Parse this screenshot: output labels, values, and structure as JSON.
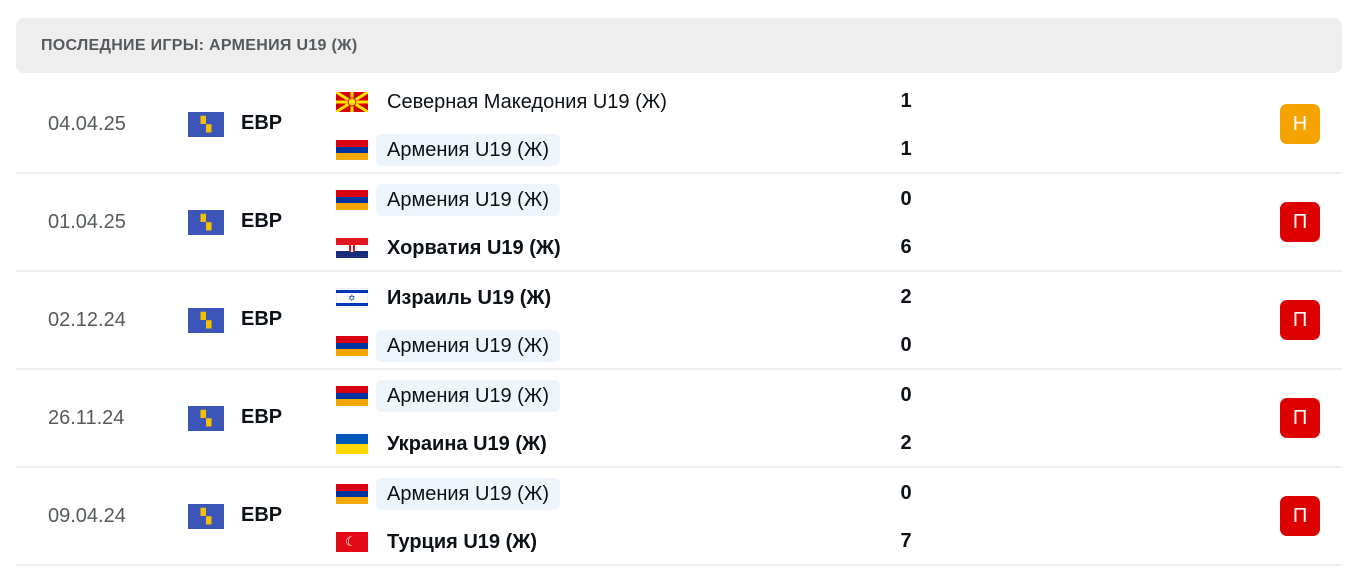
{
  "header": {
    "title": "ПОСЛЕДНИЕ ИГРЫ: АРМЕНИЯ U19 (Ж)"
  },
  "colors": {
    "draw": "#f5a300",
    "loss": "#dc0000",
    "highlight": "#eef5fd"
  },
  "matches": [
    {
      "date": "04.04.25",
      "competition": "ЕВР",
      "home": {
        "name": "Северная Македония U19 (Ж)",
        "flag": "mk",
        "score": "1"
      },
      "away": {
        "name": "Армения U19 (Ж)",
        "flag": "am",
        "score": "1"
      },
      "result": "Н",
      "result_type": "draw"
    },
    {
      "date": "01.04.25",
      "competition": "ЕВР",
      "home": {
        "name": "Армения U19 (Ж)",
        "flag": "am",
        "score": "0"
      },
      "away": {
        "name": "Хорватия U19 (Ж)",
        "flag": "hr",
        "score": "6"
      },
      "result": "П",
      "result_type": "loss"
    },
    {
      "date": "02.12.24",
      "competition": "ЕВР",
      "home": {
        "name": "Израиль U19 (Ж)",
        "flag": "il",
        "score": "2"
      },
      "away": {
        "name": "Армения U19 (Ж)",
        "flag": "am",
        "score": "0"
      },
      "result": "П",
      "result_type": "loss"
    },
    {
      "date": "26.11.24",
      "competition": "ЕВР",
      "home": {
        "name": "Армения U19 (Ж)",
        "flag": "am",
        "score": "0"
      },
      "away": {
        "name": "Украина U19 (Ж)",
        "flag": "ua",
        "score": "2"
      },
      "result": "П",
      "result_type": "loss"
    },
    {
      "date": "09.04.24",
      "competition": "ЕВР",
      "home": {
        "name": "Армения U19 (Ж)",
        "flag": "am",
        "score": "0"
      },
      "away": {
        "name": "Турция U19 (Ж)",
        "flag": "tr",
        "score": "7"
      },
      "result": "П",
      "result_type": "loss"
    }
  ]
}
